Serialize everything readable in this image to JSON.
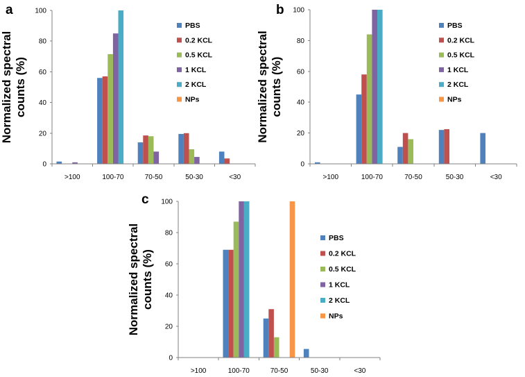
{
  "figure": {
    "series_colors": {
      "PBS": "#4f81bd",
      "0.2 KCL": "#c0504d",
      "0.5 KCL": "#9bbb59",
      "1 KCL": "#8064a2",
      "2 KCL": "#4bacc6",
      "NPs": "#f79646"
    }
  },
  "chart_data": [
    {
      "panel": "a",
      "type": "bar",
      "title": "",
      "xlabel": "",
      "ylabel_lines": [
        "Normalized spectral",
        "counts (%)"
      ],
      "ylim": [
        0,
        100
      ],
      "yticks": [
        "0",
        "20",
        "40",
        "60",
        "80",
        "100"
      ],
      "categories": [
        ">100",
        "100-70",
        "70-50",
        "50-30",
        "<30"
      ],
      "legend": [
        "PBS",
        "0.2 KCL",
        "0.5 KCL",
        "1 KCL",
        "2 KCL",
        "NPs"
      ],
      "series": [
        {
          "name": "PBS",
          "values": [
            1.5,
            56,
            14,
            19.5,
            8
          ]
        },
        {
          "name": "0.2 KCL",
          "values": [
            0,
            57,
            18.5,
            20,
            3.5
          ]
        },
        {
          "name": "0.5 KCL",
          "values": [
            0,
            71.5,
            18,
            9.5,
            0
          ]
        },
        {
          "name": "1 KCL",
          "values": [
            1,
            85,
            8,
            4.5,
            0
          ]
        },
        {
          "name": "2 KCL",
          "values": [
            0,
            100,
            0,
            0,
            0
          ]
        },
        {
          "name": "NPs",
          "values": [
            0,
            0,
            0,
            0,
            0
          ]
        }
      ]
    },
    {
      "panel": "b",
      "type": "bar",
      "title": "",
      "xlabel": "",
      "ylabel_lines": [
        "Normalized spectral",
        "counts (%)"
      ],
      "ylim": [
        0,
        100
      ],
      "yticks": [
        "0",
        "20",
        "40",
        "60",
        "80",
        "100"
      ],
      "categories": [
        ">100",
        "100-70",
        "70-50",
        "50-30",
        "<30"
      ],
      "legend": [
        "PBS",
        "0.2 KCL",
        "0.5 KCL",
        "1 KCL",
        "2 KCL",
        "NPs"
      ],
      "series": [
        {
          "name": "PBS",
          "values": [
            1,
            45,
            11,
            22,
            20
          ]
        },
        {
          "name": "0.2 KCL",
          "values": [
            0,
            58,
            20,
            22.5,
            0
          ]
        },
        {
          "name": "0.5 KCL",
          "values": [
            0,
            84,
            16,
            0,
            0
          ]
        },
        {
          "name": "1 KCL",
          "values": [
            0,
            100,
            0,
            0,
            0
          ]
        },
        {
          "name": "2 KCL",
          "values": [
            0,
            100,
            0,
            0,
            0
          ]
        },
        {
          "name": "NPs",
          "values": [
            0,
            0,
            0,
            0,
            0
          ]
        }
      ]
    },
    {
      "panel": "c",
      "type": "bar",
      "title": "",
      "xlabel": "",
      "ylabel_lines": [
        "Normalized spectral",
        "counts (%)"
      ],
      "ylim": [
        0,
        100
      ],
      "yticks": [
        "0",
        "20",
        "40",
        "60",
        "80",
        "100"
      ],
      "categories": [
        ">100",
        "100-70",
        "70-50",
        "50-30",
        "<30"
      ],
      "legend": [
        "PBS",
        "0.2 KCL",
        "0.5 KCL",
        "1 KCL",
        "2 KCL",
        "NPs"
      ],
      "series": [
        {
          "name": "PBS",
          "values": [
            0,
            69,
            25,
            5.5,
            0
          ]
        },
        {
          "name": "0.2 KCL",
          "values": [
            0,
            69,
            31,
            0,
            0
          ]
        },
        {
          "name": "0.5 KCL",
          "values": [
            0,
            87,
            13,
            0,
            0
          ]
        },
        {
          "name": "1 KCL",
          "values": [
            0,
            100,
            0,
            0,
            0
          ]
        },
        {
          "name": "2 KCL",
          "values": [
            0,
            100,
            0,
            0,
            0
          ]
        },
        {
          "name": "NPs",
          "values": [
            0,
            0,
            100,
            0,
            0
          ]
        }
      ]
    }
  ]
}
